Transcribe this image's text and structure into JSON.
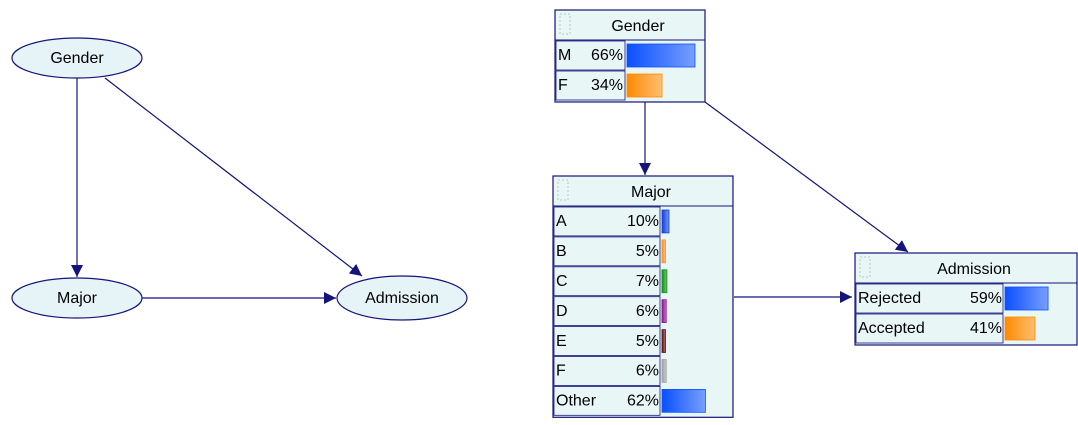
{
  "left_graph": {
    "nodes": [
      {
        "label": "Gender"
      },
      {
        "label": "Major"
      },
      {
        "label": "Admission"
      }
    ]
  },
  "right_graph": {
    "nodes": [
      {
        "title": "Gender",
        "states": [
          {
            "name": "M",
            "value": 66,
            "label": "66%",
            "color": "#0a50ff"
          },
          {
            "name": "F",
            "value": 34,
            "label": "34%",
            "color": "#ff8a00"
          }
        ]
      },
      {
        "title": "Major",
        "states": [
          {
            "name": "A",
            "value": 10,
            "label": "10%",
            "color": "#1040e0"
          },
          {
            "name": "B",
            "value": 5,
            "label": "5%",
            "color": "#ff9020"
          },
          {
            "name": "C",
            "value": 7,
            "label": "7%",
            "color": "#109010"
          },
          {
            "name": "D",
            "value": 6,
            "label": "6%",
            "color": "#901090"
          },
          {
            "name": "E",
            "value": 5,
            "label": "5%",
            "color": "#601010"
          },
          {
            "name": "F",
            "value": 6,
            "label": "6%",
            "color": "#a0a0a0"
          },
          {
            "name": "Other",
            "value": 62,
            "label": "62%",
            "color": "#0a50ff"
          }
        ]
      },
      {
        "title": "Admission",
        "states": [
          {
            "name": "Rejected",
            "value": 59,
            "label": "59%",
            "color": "#0a50ff"
          },
          {
            "name": "Accepted",
            "value": 41,
            "label": "41%",
            "color": "#ff8a00"
          }
        ]
      }
    ]
  }
}
